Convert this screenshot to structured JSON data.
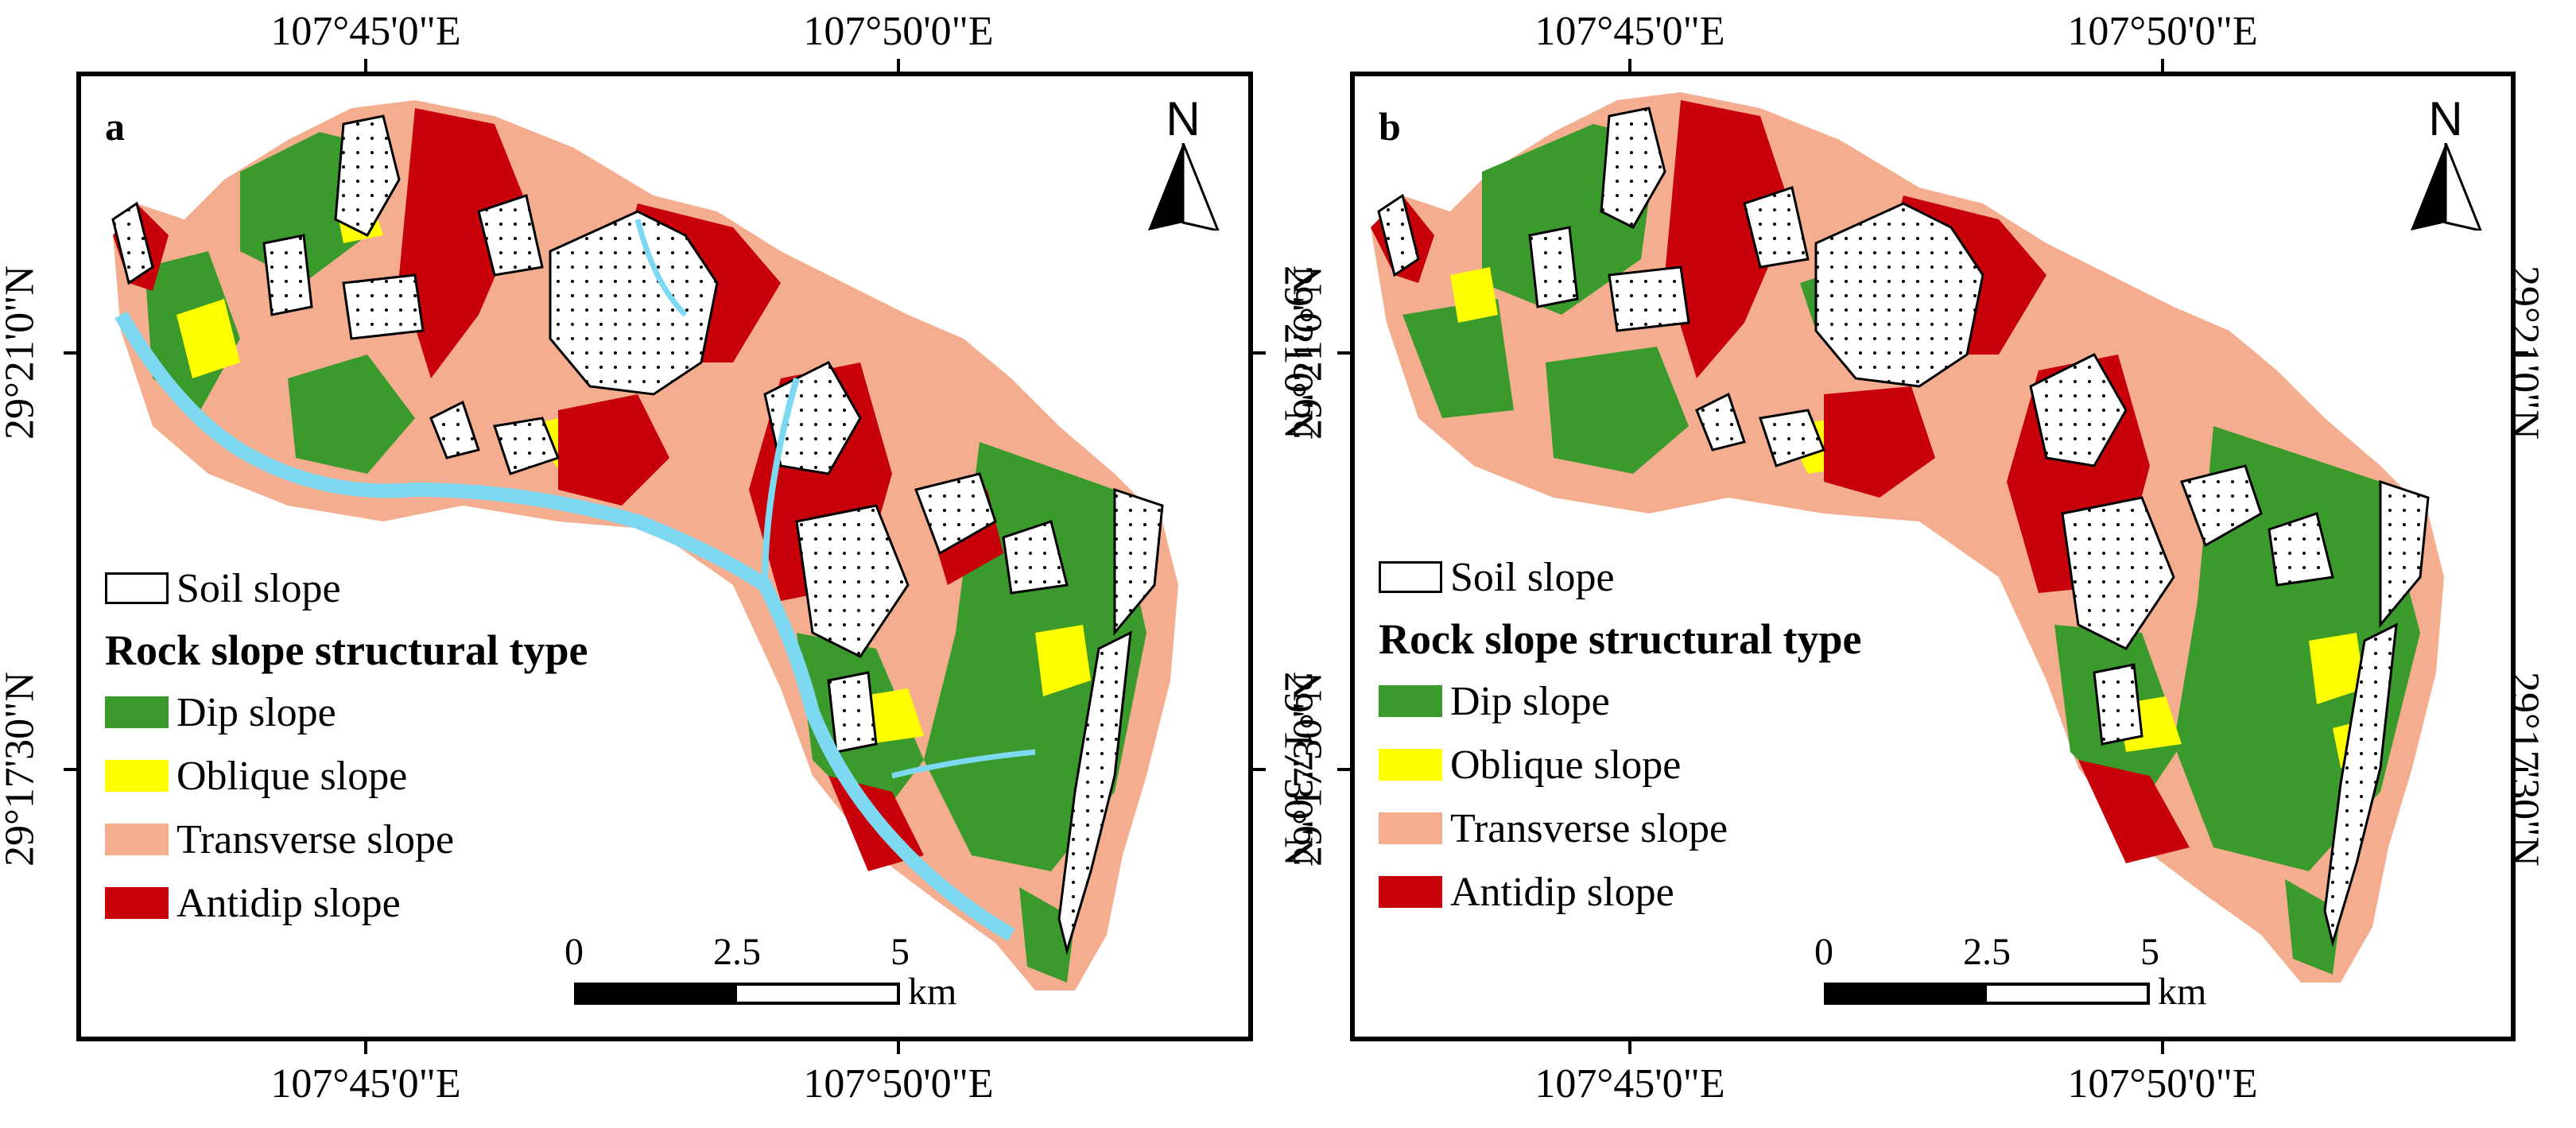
{
  "colors": {
    "dip": "#3a9a2c",
    "oblique": "#ffff00",
    "transverse": "#f4ae8f",
    "antidip": "#c8000a",
    "soil_fill": "#ffffff",
    "river": "#7dd8f2"
  },
  "coordinates": {
    "lon_west": "107°45'0\"E",
    "lon_east": "107°50'0\"E",
    "lat_north": "29°21'0\"N",
    "lat_south": "29°17'30\"N"
  },
  "panels": [
    {
      "letter": "a",
      "north_label": "N",
      "legend": {
        "soil_label": "Soil slope",
        "heading": "Rock slope structural type",
        "items": [
          {
            "label": "Dip slope",
            "color": "#3a9a2c"
          },
          {
            "label": "Oblique slope",
            "color": "#ffff00"
          },
          {
            "label": "Transverse slope",
            "color": "#f4ae8f"
          },
          {
            "label": "Antidip slope",
            "color": "#c8000a"
          }
        ]
      },
      "scale": {
        "ticks": [
          "0",
          "2.5",
          "5"
        ],
        "unit": "km"
      }
    },
    {
      "letter": "b",
      "north_label": "N",
      "legend": {
        "soil_label": "Soil slope",
        "heading": "Rock slope structural type",
        "items": [
          {
            "label": "Dip slope",
            "color": "#3a9a2c"
          },
          {
            "label": "Oblique slope",
            "color": "#ffff00"
          },
          {
            "label": "Transverse slope",
            "color": "#f4ae8f"
          },
          {
            "label": "Antidip slope",
            "color": "#c8000a"
          }
        ]
      },
      "scale": {
        "ticks": [
          "0",
          "2.5",
          "5"
        ],
        "unit": "km"
      }
    }
  ]
}
